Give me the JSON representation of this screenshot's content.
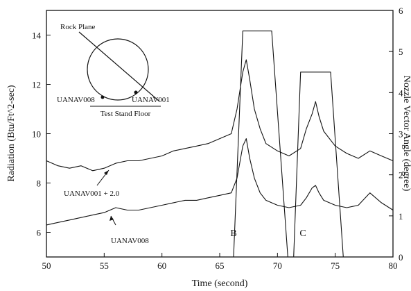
{
  "chart_data": {
    "type": "line",
    "xlabel": "Time (second)",
    "ylabel": "Radiation (Btu/Ft^2-sec)",
    "y2label": "Nozzle Vector Angle (degree)",
    "xlim": [
      50,
      80
    ],
    "ylim": [
      5,
      15
    ],
    "y2lim": [
      0,
      6
    ],
    "x_ticks": [
      "50",
      "55",
      "60",
      "65",
      "70",
      "75",
      "80"
    ],
    "y_ticks": [
      "6",
      "8",
      "10",
      "12",
      "14"
    ],
    "y2_ticks": [
      "0",
      "1",
      "2",
      "3",
      "4",
      "5",
      "6"
    ],
    "grid": false,
    "legend": "none",
    "colors": {
      "line": "#111111",
      "background": "#ffffff"
    },
    "series": [
      {
        "name": "UANAV001 + 2.0",
        "axis": "left",
        "x": [
          50,
          51,
          52,
          53,
          54,
          55,
          56,
          57,
          58,
          59,
          60,
          61,
          62,
          63,
          64,
          65,
          66,
          66.5,
          67,
          67.3,
          67.6,
          68,
          68.5,
          69,
          70,
          71,
          72,
          72.5,
          73,
          73.3,
          73.6,
          74,
          75,
          76,
          77,
          78,
          79,
          80
        ],
        "y": [
          8.9,
          8.7,
          8.6,
          8.7,
          8.5,
          8.6,
          8.8,
          8.9,
          8.9,
          9.0,
          9.1,
          9.3,
          9.4,
          9.5,
          9.6,
          9.8,
          10.0,
          11.0,
          12.5,
          13.0,
          12.2,
          11.0,
          10.2,
          9.6,
          9.3,
          9.1,
          9.4,
          10.2,
          10.8,
          11.3,
          10.7,
          10.1,
          9.5,
          9.2,
          9.0,
          9.3,
          9.1,
          8.9
        ]
      },
      {
        "name": "UANAV008",
        "axis": "left",
        "x": [
          50,
          51,
          52,
          53,
          54,
          55,
          56,
          57,
          58,
          59,
          60,
          61,
          62,
          63,
          64,
          65,
          66,
          66.5,
          67,
          67.3,
          67.6,
          68,
          68.5,
          69,
          70,
          71,
          72,
          72.5,
          73,
          73.3,
          73.6,
          74,
          75,
          76,
          77,
          78,
          79,
          80
        ],
        "y": [
          6.3,
          6.4,
          6.5,
          6.6,
          6.7,
          6.8,
          7.0,
          6.9,
          6.9,
          7.0,
          7.1,
          7.2,
          7.3,
          7.3,
          7.4,
          7.5,
          7.6,
          8.2,
          9.5,
          9.8,
          9.0,
          8.2,
          7.6,
          7.3,
          7.1,
          7.0,
          7.1,
          7.4,
          7.8,
          7.9,
          7.6,
          7.3,
          7.1,
          7.0,
          7.1,
          7.6,
          7.2,
          6.9
        ]
      },
      {
        "name": "Nozzle Vector Angle",
        "axis": "right",
        "x": [
          50,
          66.2,
          67.0,
          69.5,
          70.9,
          71.4,
          72.0,
          74.6,
          75.7,
          80
        ],
        "y": [
          0,
          0,
          5.5,
          5.5,
          0,
          0,
          4.5,
          4.5,
          0,
          0
        ]
      }
    ],
    "annotations": [
      {
        "text": "UANAV001 + 2.0",
        "x": 54,
        "y": 7.55
      },
      {
        "text": "UANAV008",
        "x": 56,
        "y": 6.0
      },
      {
        "text": "B",
        "x": 68.0,
        "y": 6.0
      },
      {
        "text": "C",
        "x": 73.5,
        "y": 6.0
      }
    ],
    "inset": {
      "label_rock_plane": "Rock Plane",
      "label_left": "UANAV008",
      "label_right": "UANAV001",
      "label_floor": "Test Stand Floor"
    }
  }
}
